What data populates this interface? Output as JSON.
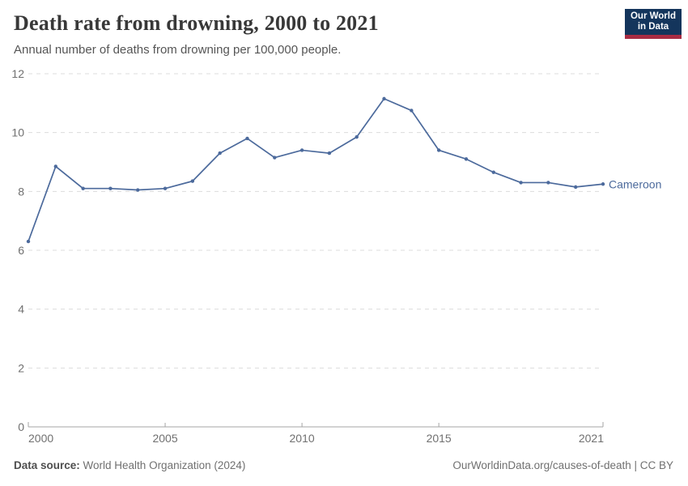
{
  "header": {
    "title": "Death rate from drowning, 2000 to 2021",
    "subtitle": "Annual number of deaths from drowning per 100,000 people.",
    "logo": {
      "line1": "Our World",
      "line2": "in Data",
      "bg_color": "#14355c",
      "accent_color": "#a82c43"
    }
  },
  "chart_data": {
    "type": "line",
    "title": "Death rate from drowning, 2000 to 2021",
    "subtitle": "Annual number of deaths from drowning per 100,000 people.",
    "series": [
      {
        "name": "Cameroon",
        "color": "#4C6A9C",
        "x": [
          2000,
          2001,
          2002,
          2003,
          2004,
          2005,
          2006,
          2007,
          2008,
          2009,
          2010,
          2011,
          2012,
          2013,
          2014,
          2015,
          2016,
          2017,
          2018,
          2019,
          2020,
          2021
        ],
        "values": [
          6.3,
          8.85,
          8.1,
          8.1,
          8.05,
          8.1,
          8.35,
          9.3,
          9.8,
          9.15,
          9.4,
          9.3,
          9.85,
          11.15,
          10.75,
          9.4,
          9.1,
          8.65,
          8.3,
          8.3,
          8.15,
          8.25
        ]
      }
    ],
    "xlabel": "",
    "ylabel": "",
    "xlim": [
      2000,
      2021
    ],
    "ylim": [
      0,
      12
    ],
    "x_ticks": [
      2000,
      2005,
      2010,
      2015,
      2021
    ],
    "y_ticks": [
      0,
      2,
      4,
      6,
      8,
      10,
      12
    ],
    "grid": "horizontal-dashed",
    "legend_position": "end-of-line-label",
    "colors": {
      "gridline": "#dcdcdc",
      "axis": "#a5a5a5",
      "tick_label": "#707070"
    }
  },
  "footer": {
    "data_source_label": "Data source:",
    "data_source_value": " World Health Organization (2024)",
    "link": "OurWorldinData.org/causes-of-death | CC BY"
  }
}
